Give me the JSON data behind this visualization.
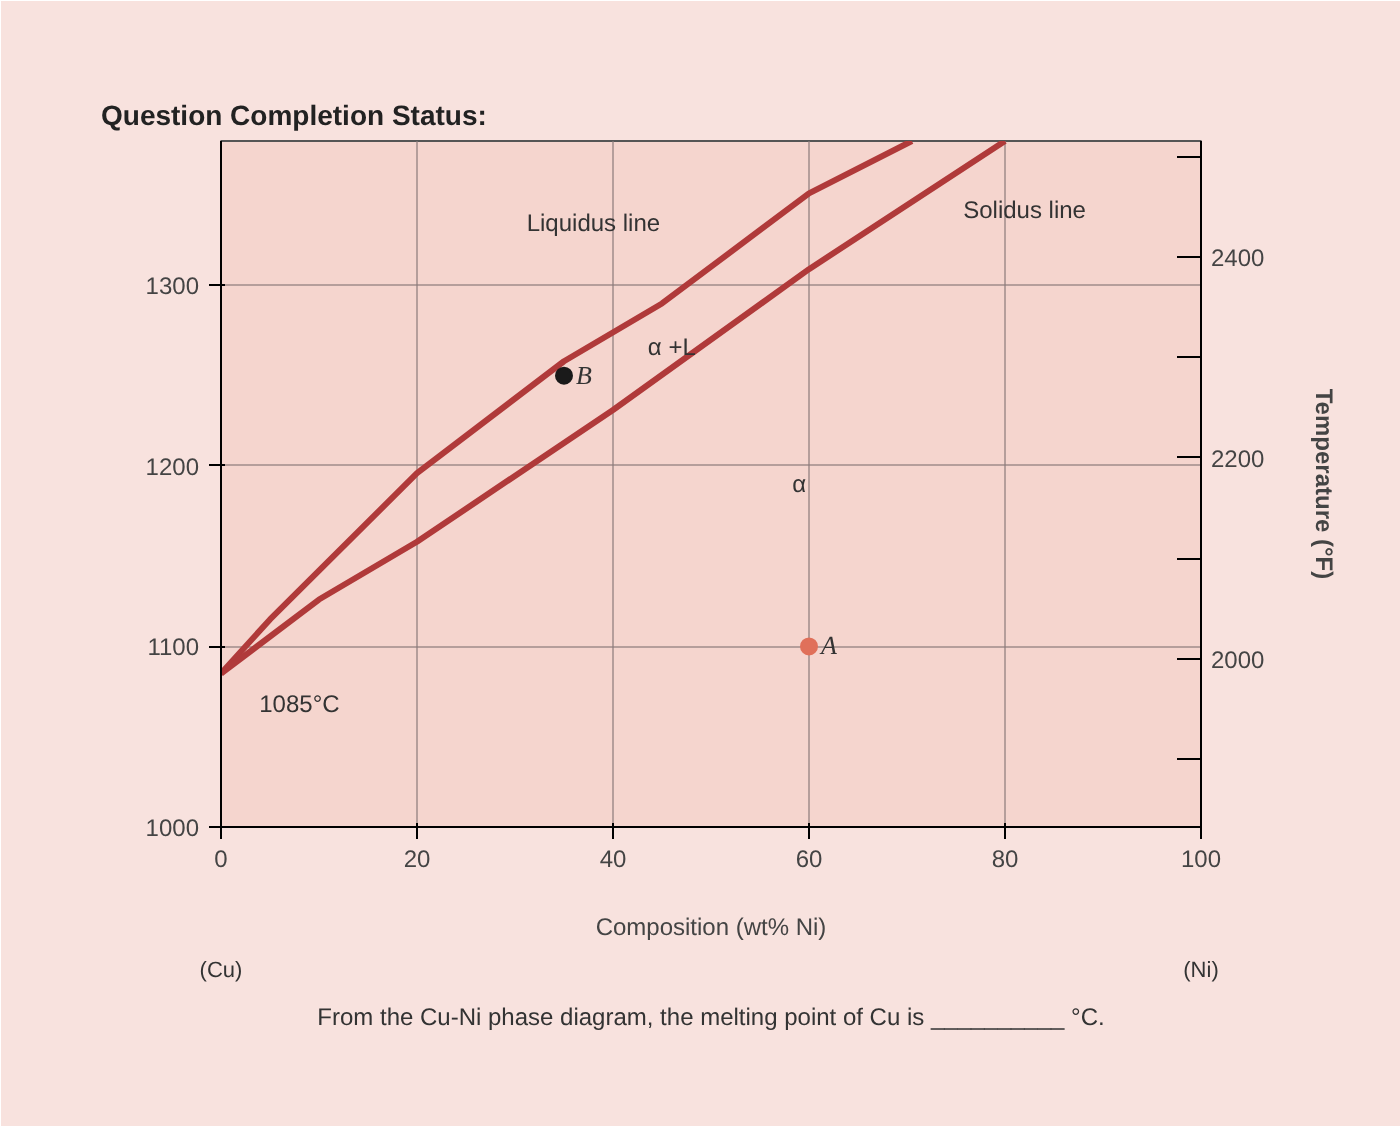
{
  "chart_data": {
    "type": "line",
    "title": "Question Completion Status:",
    "xlabel": "Composition (wt% Ni)",
    "y2label": "Temperature (°F)",
    "xlim": [
      0,
      100
    ],
    "xticks": [
      0,
      20,
      40,
      60,
      80,
      100
    ],
    "ylim": [
      1000,
      1380
    ],
    "yticks": [
      1000,
      1100,
      1200,
      1300
    ],
    "y2lim": [
      1832,
      2516
    ],
    "y2ticks": [
      {
        "value": 1900,
        "label": null
      },
      2000,
      {
        "value": 2100,
        "label": null
      },
      2200,
      {
        "value": 2300,
        "label": null
      },
      2400,
      {
        "value": 2500,
        "label": null
      }
    ],
    "grid": true,
    "series": [
      {
        "color": "#b03a3a",
        "x": [
          0,
          5,
          10,
          20,
          35,
          45,
          60,
          70.5
        ],
        "values": [
          1085,
          1115,
          1142,
          1196,
          1258,
          1290,
          1351,
          1380
        ]
      },
      {
        "color": "#b03a3a",
        "x": [
          0,
          10,
          20,
          40,
          60,
          80
        ],
        "values": [
          1085,
          1126,
          1158,
          1231,
          1309,
          1380
        ]
      },
      {
        "type": "scatter",
        "name": "B",
        "color": "#1a1a1a",
        "x": [
          35
        ],
        "values": [
          1250
        ]
      },
      {
        "type": "scatter",
        "name": "A",
        "color": "#e0705a",
        "x": [
          60
        ],
        "values": [
          1100
        ]
      }
    ],
    "annotations": [
      "Liquidus line",
      "Solidus line",
      "α +L",
      "α",
      "1085°C",
      "(Cu)",
      "(Ni)",
      "From the Cu-Ni phase diagram, the melting point of Cu is __________ °C."
    ]
  }
}
